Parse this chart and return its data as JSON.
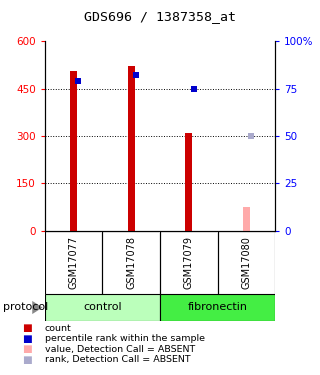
{
  "title": "GDS696 / 1387358_at",
  "samples": [
    "GSM17077",
    "GSM17078",
    "GSM17079",
    "GSM17080"
  ],
  "bar_values": [
    505,
    520,
    308,
    75
  ],
  "bar_colors": [
    "#cc0000",
    "#cc0000",
    "#cc0000",
    "#ffaaaa"
  ],
  "rank_values": [
    79,
    82,
    75,
    50
  ],
  "rank_colors": [
    "#0000cc",
    "#0000cc",
    "#0000cc",
    "#aaaacc"
  ],
  "ylim_left": [
    0,
    600
  ],
  "ylim_right": [
    0,
    100
  ],
  "yticks_left": [
    0,
    150,
    300,
    450,
    600
  ],
  "yticks_right": [
    0,
    25,
    50,
    75,
    100
  ],
  "ytick_labels_left": [
    "0",
    "150",
    "300",
    "450",
    "600"
  ],
  "ytick_labels_right": [
    "0",
    "25",
    "50",
    "75",
    "100%"
  ],
  "groups": [
    {
      "label": "control",
      "indices": [
        0,
        1
      ],
      "color": "#bbffbb"
    },
    {
      "label": "fibronectin",
      "indices": [
        2,
        3
      ],
      "color": "#44ee44"
    }
  ],
  "protocol_label": "protocol",
  "legend_items": [
    {
      "color": "#cc0000",
      "label": "count"
    },
    {
      "color": "#0000cc",
      "label": "percentile rank within the sample"
    },
    {
      "color": "#ffaaaa",
      "label": "value, Detection Call = ABSENT"
    },
    {
      "color": "#aaaacc",
      "label": "rank, Detection Call = ABSENT"
    }
  ],
  "bg_color": "#ffffff",
  "plot_bg": "#ffffff",
  "label_bg": "#cccccc"
}
